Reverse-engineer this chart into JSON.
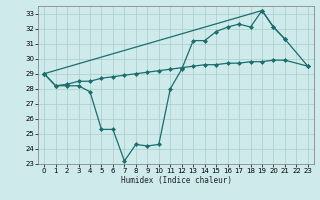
{
  "xlabel": "Humidex (Indice chaleur)",
  "xlim": [
    -0.5,
    23.5
  ],
  "ylim": [
    23,
    33.5
  ],
  "yticks": [
    23,
    24,
    25,
    26,
    27,
    28,
    29,
    30,
    31,
    32,
    33
  ],
  "xticks": [
    0,
    1,
    2,
    3,
    4,
    5,
    6,
    7,
    8,
    9,
    10,
    11,
    12,
    13,
    14,
    15,
    16,
    17,
    18,
    19,
    20,
    21,
    22,
    23
  ],
  "background_color": "#ceeaea",
  "grid_color": "#a8cccc",
  "line_color": "#1a6e6e",
  "series": [
    {
      "x": [
        0,
        1,
        2,
        3,
        4,
        5,
        6,
        7,
        8,
        9,
        10,
        11,
        12,
        13,
        14,
        15,
        16,
        17,
        18,
        19,
        20,
        21
      ],
      "y": [
        29.0,
        28.2,
        28.2,
        28.2,
        27.8,
        25.3,
        25.3,
        23.2,
        24.3,
        24.2,
        24.3,
        28.0,
        29.3,
        31.2,
        31.2,
        31.8,
        32.1,
        32.3,
        32.1,
        33.2,
        32.1,
        31.3
      ]
    },
    {
      "x": [
        0,
        19,
        20,
        21,
        23
      ],
      "y": [
        29.0,
        33.2,
        32.1,
        31.3,
        29.5
      ]
    },
    {
      "x": [
        0,
        1,
        2,
        3,
        4,
        5,
        6,
        7,
        8,
        9,
        10,
        11,
        12,
        13,
        14,
        15,
        16,
        17,
        18,
        19,
        20,
        21,
        23
      ],
      "y": [
        29.0,
        28.2,
        28.3,
        28.5,
        28.5,
        28.7,
        28.8,
        28.9,
        29.0,
        29.1,
        29.2,
        29.3,
        29.4,
        29.5,
        29.6,
        29.6,
        29.7,
        29.7,
        29.8,
        29.8,
        29.9,
        29.9,
        29.5
      ]
    }
  ]
}
